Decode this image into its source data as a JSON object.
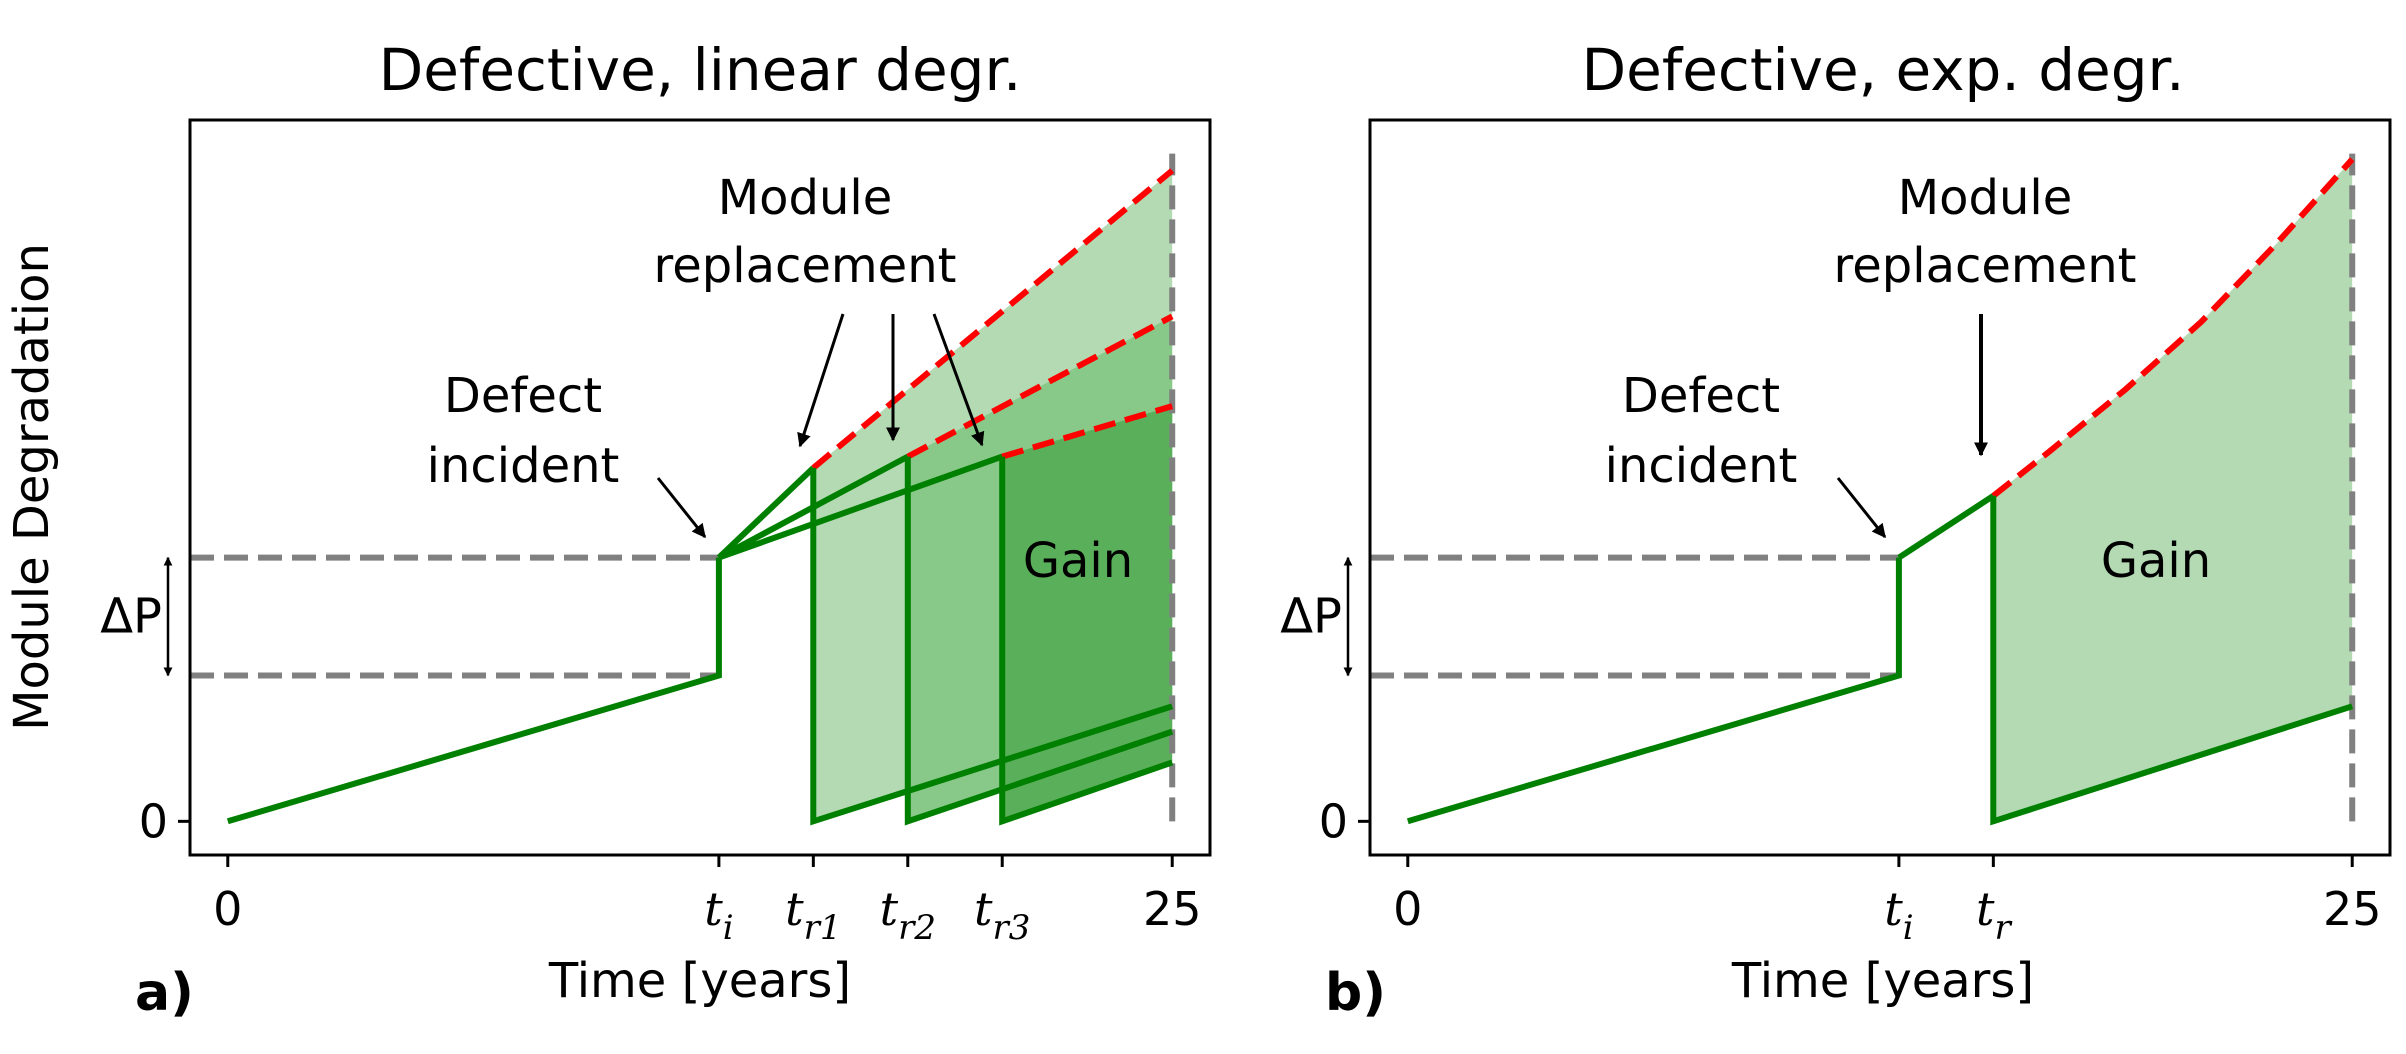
{
  "figure": {
    "ylabel": "Module Degradation",
    "xlabel": "Time [years]"
  },
  "colors": {
    "line": "#008000",
    "dashed_ext": "#ff0000",
    "reference": "#808080",
    "gain_fill_light": "#b3dab3",
    "gain_fill_mid": "#88c888",
    "gain_fill_dark": "#5aaf5a"
  },
  "chart_data": [
    {
      "type": "line",
      "title": "Defective, linear degr.",
      "panel_label": "a)",
      "xlabel": "Time [years]",
      "ylabel": "Module Degradation",
      "xlim": [
        -1,
        26
      ],
      "ylim": [
        -0.6,
        12.5
      ],
      "xticks": [
        {
          "x": 0,
          "label": "0"
        },
        {
          "x": 13,
          "label": "t",
          "sub": "i"
        },
        {
          "x": 15.5,
          "label": "t",
          "sub": "r1"
        },
        {
          "x": 18,
          "label": "t",
          "sub": "r2"
        },
        {
          "x": 20.5,
          "label": "t",
          "sub": "r3"
        },
        {
          "x": 25,
          "label": "25"
        }
      ],
      "yticks": [
        {
          "y": 0,
          "label": "0"
        }
      ],
      "delta_label": "ΔP",
      "delta_y": [
        2.6,
        4.7
      ],
      "series": [
        {
          "name": "degradation before defect",
          "style": "solid",
          "points": [
            [
              0,
              0
            ],
            [
              13,
              2.6
            ],
            [
              13,
              4.7
            ]
          ]
        },
        {
          "name": "after defect path 1",
          "style": "solid",
          "points": [
            [
              13,
              4.7
            ],
            [
              15.5,
              6.3
            ]
          ]
        },
        {
          "name": "after defect path 2",
          "style": "solid",
          "points": [
            [
              13,
              4.7
            ],
            [
              18,
              6.5
            ]
          ]
        },
        {
          "name": "after defect path 3",
          "style": "solid",
          "points": [
            [
              13,
              4.7
            ],
            [
              20.5,
              6.5
            ]
          ]
        },
        {
          "name": "no replacement extension 1",
          "style": "dashed",
          "points": [
            [
              15.5,
              6.3
            ],
            [
              25,
              11.6
            ]
          ]
        },
        {
          "name": "no replacement extension 2",
          "style": "dashed",
          "points": [
            [
              18,
              6.5
            ],
            [
              25,
              9.0
            ]
          ]
        },
        {
          "name": "no replacement extension 3",
          "style": "dashed",
          "points": [
            [
              20.5,
              6.5
            ],
            [
              25,
              7.4
            ]
          ]
        },
        {
          "name": "replaced module 1",
          "style": "solid",
          "points": [
            [
              15.5,
              6.3
            ],
            [
              15.5,
              0
            ],
            [
              25,
              2.05
            ]
          ]
        },
        {
          "name": "replaced module 2",
          "style": "solid",
          "points": [
            [
              18,
              6.5
            ],
            [
              18,
              0
            ],
            [
              25,
              1.6
            ]
          ]
        },
        {
          "name": "replaced module 3",
          "style": "solid",
          "points": [
            [
              20.5,
              6.5
            ],
            [
              20.5,
              0
            ],
            [
              25,
              1.05
            ]
          ]
        }
      ],
      "gain_regions": [
        {
          "shade": "light",
          "points": [
            [
              15.5,
              6.3
            ],
            [
              25,
              11.6
            ],
            [
              25,
              2.05
            ],
            [
              15.5,
              0
            ]
          ]
        },
        {
          "shade": "mid",
          "points": [
            [
              18,
              6.5
            ],
            [
              25,
              9.0
            ],
            [
              25,
              1.6
            ],
            [
              18,
              0
            ]
          ]
        },
        {
          "shade": "dark",
          "points": [
            [
              20.5,
              6.5
            ],
            [
              25,
              7.4
            ],
            [
              25,
              1.05
            ],
            [
              20.5,
              0
            ]
          ]
        }
      ],
      "annotations": [
        {
          "text": [
            "Defect",
            "incident"
          ],
          "arrow_to": [
            13,
            4.7
          ]
        },
        {
          "text": [
            "Module",
            "replacement"
          ],
          "arrows_to": [
            [
              15.5,
              6.3
            ],
            [
              18,
              6.5
            ],
            [
              20.5,
              6.5
            ]
          ]
        },
        {
          "text": [
            "Gain"
          ]
        }
      ]
    },
    {
      "type": "line",
      "title": "Defective, exp. degr.",
      "panel_label": "b)",
      "xlabel": "Time [years]",
      "xlim": [
        -1,
        26
      ],
      "ylim": [
        -0.6,
        12.5
      ],
      "xticks": [
        {
          "x": 0,
          "label": "0"
        },
        {
          "x": 13,
          "label": "t",
          "sub": "i"
        },
        {
          "x": 15.5,
          "label": "t",
          "sub": "r"
        },
        {
          "x": 25,
          "label": "25"
        }
      ],
      "yticks": [
        {
          "y": 0,
          "label": "0"
        }
      ],
      "delta_label": "ΔP",
      "delta_y": [
        2.6,
        4.7
      ],
      "series": [
        {
          "name": "degradation before defect",
          "style": "solid",
          "points": [
            [
              0,
              0
            ],
            [
              13,
              2.6
            ],
            [
              13,
              4.7
            ]
          ]
        },
        {
          "name": "accelerated after defect",
          "style": "solid",
          "points": [
            [
              13,
              4.7
            ],
            [
              15.5,
              5.8
            ]
          ]
        },
        {
          "name": "no replacement extension",
          "style": "dashed",
          "points": [
            [
              15.5,
              5.8
            ],
            [
              17,
              6.6
            ],
            [
              19,
              7.7
            ],
            [
              21,
              8.9
            ],
            [
              23,
              10.3
            ],
            [
              25,
              11.8
            ]
          ]
        },
        {
          "name": "replaced module",
          "style": "solid",
          "points": [
            [
              15.5,
              5.8
            ],
            [
              15.5,
              0
            ],
            [
              25,
              2.05
            ]
          ]
        }
      ],
      "gain_regions": [
        {
          "shade": "light",
          "points": [
            [
              15.5,
              5.8
            ],
            [
              17,
              6.6
            ],
            [
              19,
              7.7
            ],
            [
              21,
              8.9
            ],
            [
              23,
              10.3
            ],
            [
              25,
              11.8
            ],
            [
              25,
              2.05
            ],
            [
              15.5,
              0
            ]
          ]
        }
      ],
      "annotations": [
        {
          "text": [
            "Defect",
            "incident"
          ],
          "arrow_to": [
            13,
            4.7
          ]
        },
        {
          "text": [
            "Module",
            "replacement"
          ],
          "arrows_to": [
            [
              15.5,
              5.8
            ]
          ]
        },
        {
          "text": [
            "Gain"
          ]
        }
      ]
    }
  ]
}
